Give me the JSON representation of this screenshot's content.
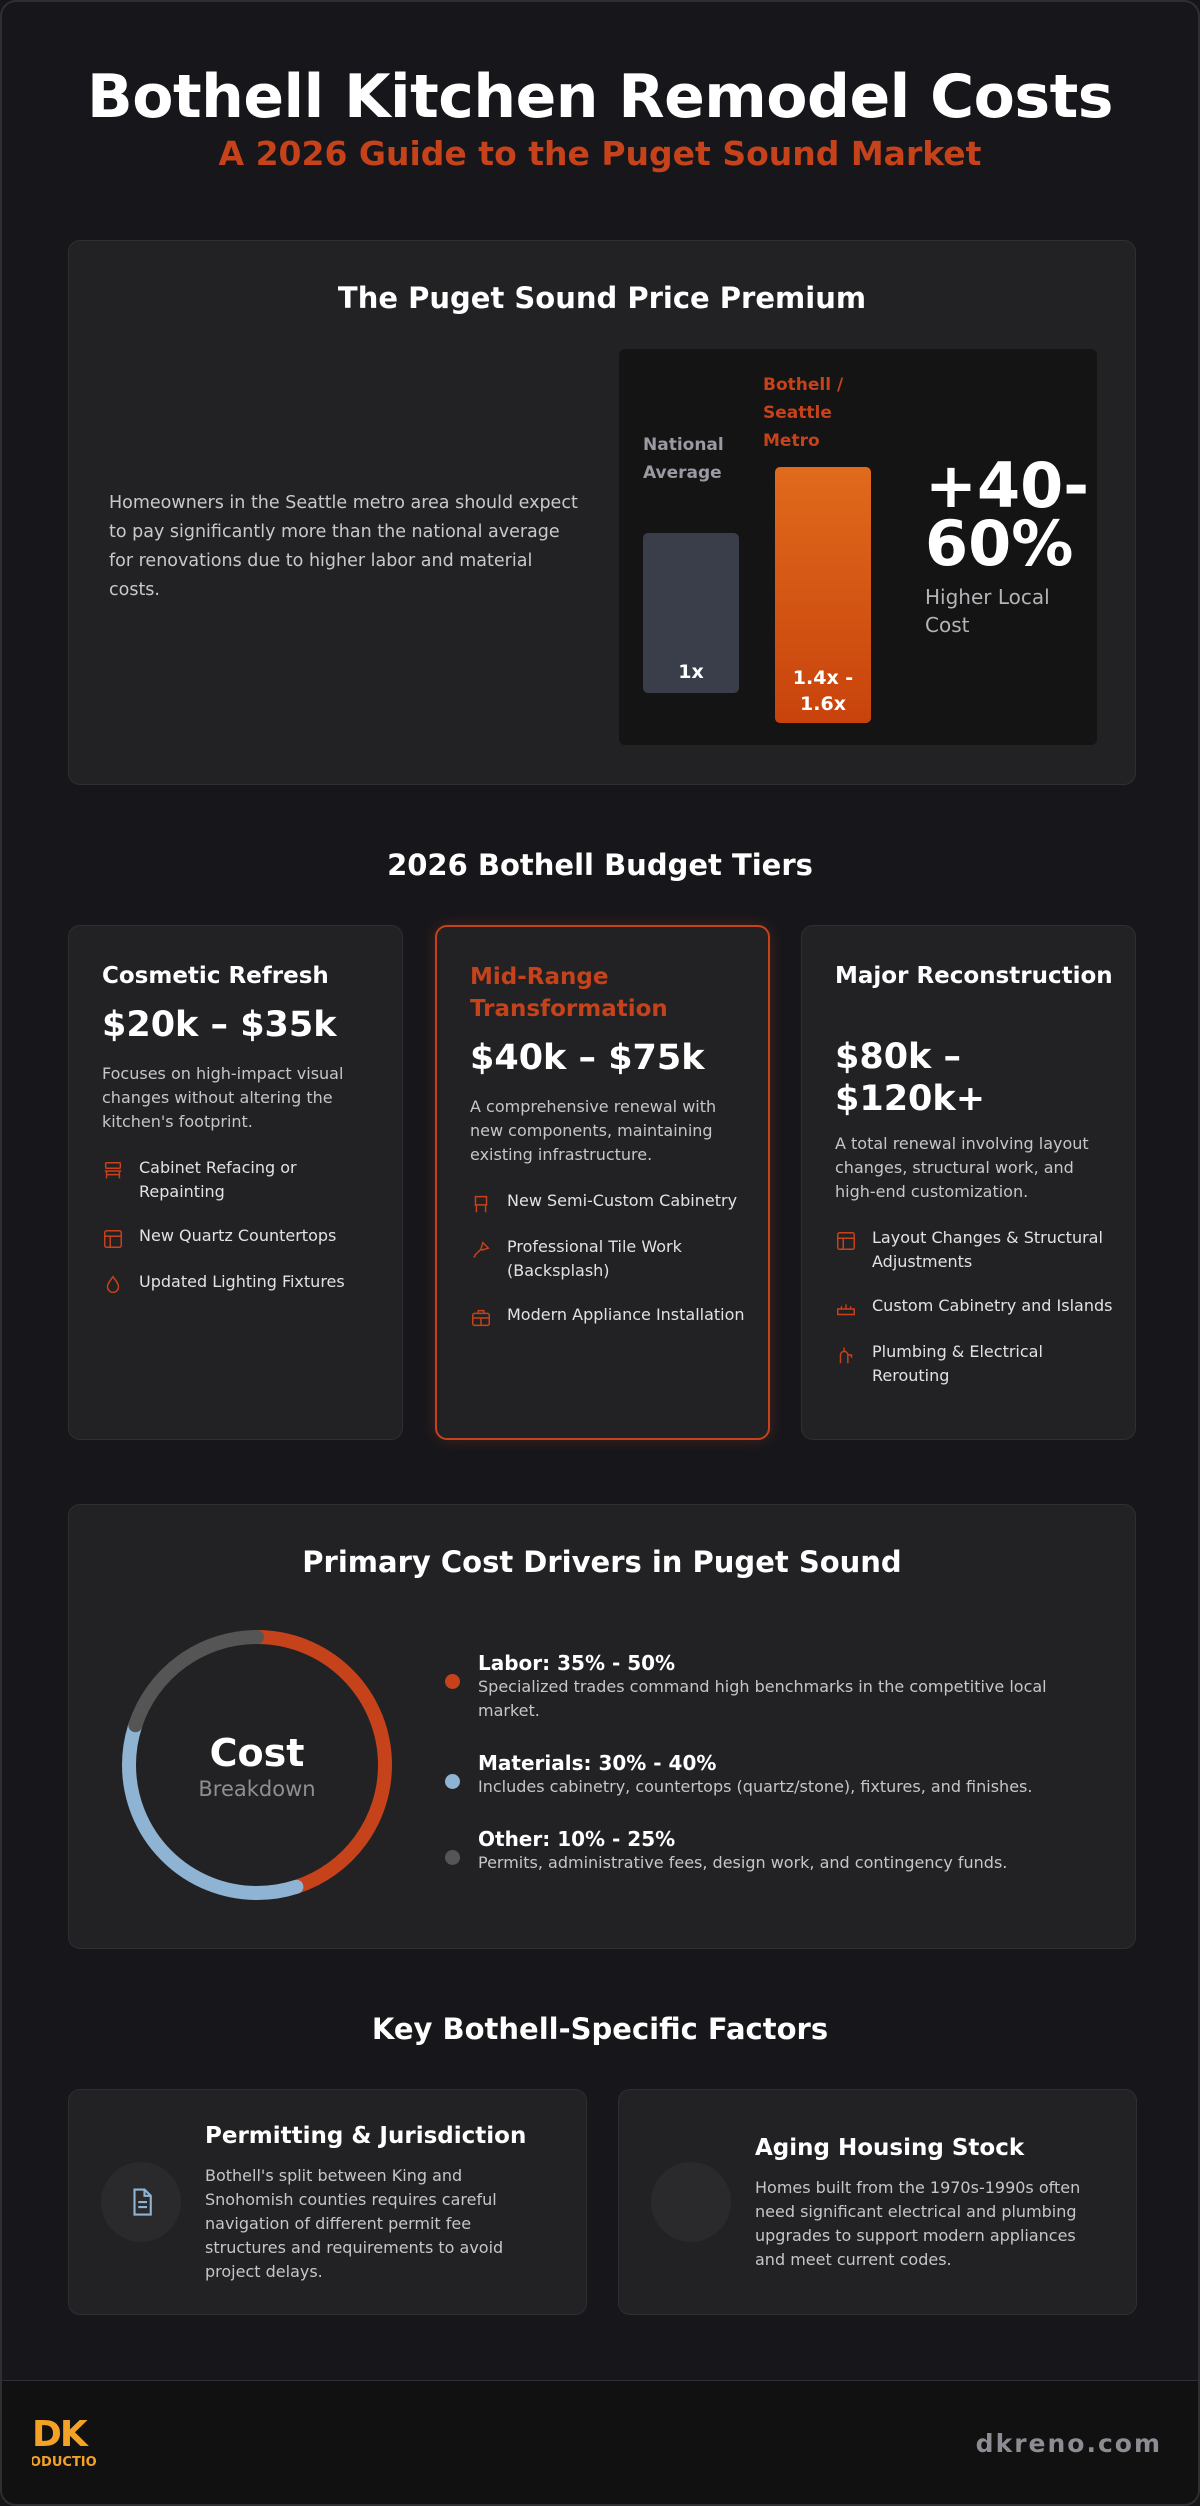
{
  "header": {
    "title": "Bothell Kitchen Remodel Costs",
    "subtitle": "A 2026 Guide to the Puget Sound Market"
  },
  "premium": {
    "title": "The Puget Sound Price Premium",
    "text": "Homeowners in the Seattle metro area should expect to pay significantly more than the national average for renovations due to higher labor and material costs.",
    "bars": [
      {
        "label_lines": [
          "National",
          "Average"
        ],
        "value_label": "1x",
        "value": 1.0,
        "color": "#3a3e4a"
      },
      {
        "label_lines": [
          "Bothell /",
          "Seattle",
          "Metro"
        ],
        "value_label_lines": [
          "1.4x -",
          "1.6x"
        ],
        "value": 1.6,
        "color_top": "#e06a1c",
        "color_bottom": "#c8430c"
      }
    ],
    "big_stat_lines": [
      "+40-",
      "60%"
    ],
    "big_stat_label": "Higher Local Cost",
    "colors": {
      "national_label": "#9a9aa3",
      "metro_label": "#c6421a"
    }
  },
  "tiers": {
    "title": "2026 Bothell Budget Tiers",
    "items": [
      {
        "name": "Cosmetic Refresh",
        "price": "$20k – $35k",
        "description": "Focuses on high-impact visual changes without altering the kitchen's footprint.",
        "color": "#8fb3d2",
        "features": [
          {
            "icon": "cabinet-icon",
            "text": "Cabinet Refacing or Repainting"
          },
          {
            "icon": "countertop-icon",
            "text": "New Quartz Countertops"
          },
          {
            "icon": "droplet-icon",
            "text": "Updated Lighting Fixtures"
          }
        ]
      },
      {
        "name": "Mid-Range Transformation",
        "price": "$40k – $75k",
        "description": "A comprehensive renewal with new components, maintaining existing infrastructure.",
        "color": "#c6421a",
        "features": [
          {
            "icon": "chair-icon",
            "text": "New Semi-Custom Cabinetry"
          },
          {
            "icon": "trowel-icon",
            "text": "Professional Tile Work (Backsplash)"
          },
          {
            "icon": "appliance-icon",
            "text": "Modern Appliance Installation"
          }
        ]
      },
      {
        "name": "Major Reconstruction",
        "price": "$80k – $120k+",
        "description": "A total renewal involving layout changes, structural work, and high-end customization.",
        "color": "#8fb3d2",
        "features": [
          {
            "icon": "layout-icon",
            "text": "Layout Changes & Structural Adjustments"
          },
          {
            "icon": "sink-icon",
            "text": "Custom Cabinetry and Islands"
          },
          {
            "icon": "plumbing-icon",
            "text": "Plumbing & Electrical Rerouting"
          }
        ]
      }
    ]
  },
  "drivers": {
    "title": "Primary Cost Drivers in Puget Sound",
    "center_title": "Cost",
    "center_sub": "Breakdown",
    "items": [
      {
        "name": "Labor: 35% - 50%",
        "desc": "Specialized trades command high benchmarks in the competitive local market.",
        "color": "#c6421a",
        "share": 0.45
      },
      {
        "name": "Materials: 30% - 40%",
        "desc": "Includes cabinetry, countertops (quartz/stone), fixtures, and finishes.",
        "color": "#8fb3d2",
        "share": 0.35
      },
      {
        "name": "Other: 10% - 25%",
        "desc": "Permits, administrative fees, design work, and contingency funds.",
        "color": "#555555",
        "share": 0.2
      }
    ]
  },
  "factors": {
    "title": "Key Bothell-Specific Factors",
    "items": [
      {
        "icon": "document-icon",
        "title": "Permitting & Jurisdiction",
        "desc": "Bothell's split between King and Snohomish counties requires careful navigation of different permit fee structures and requirements to avoid project delays."
      },
      {
        "icon": "house-icon",
        "title": "Aging Housing Stock",
        "desc": "Homes built from the 1970s-1990s often need significant electrical and plumbing upgrades to support modern appliances and meet current codes."
      }
    ]
  },
  "footer": {
    "logo_text": "DK",
    "logo_sub": "ODUCTIO",
    "site": "dkreno.com"
  }
}
